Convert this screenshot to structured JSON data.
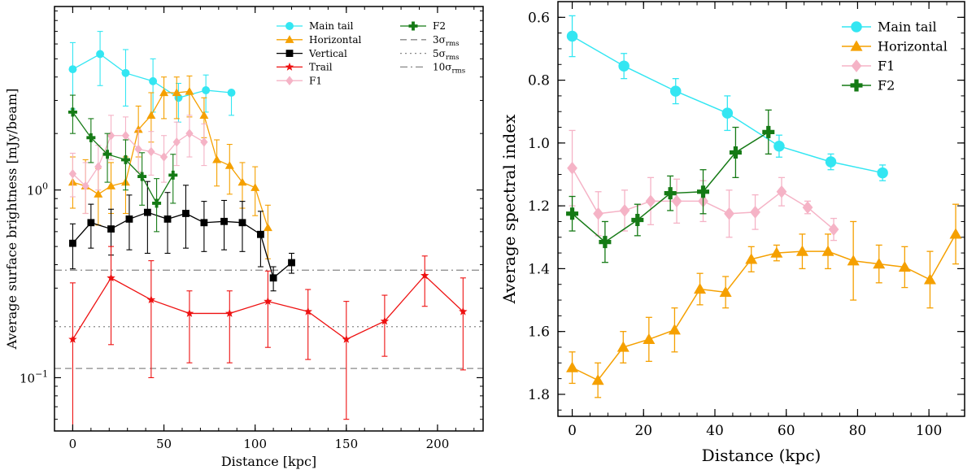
{
  "chart_data": [
    {
      "type": "line",
      "title": "",
      "xlabel": "Distance [kpc]",
      "ylabel": "Average surface brightness [mJy/beam]",
      "yscale": "log",
      "xlim": [
        -10,
        225
      ],
      "ylim": [
        0.052,
        9.5
      ],
      "xticks": [
        0,
        50,
        100,
        150,
        200
      ],
      "xtick_labels": [
        "0",
        "50",
        "100",
        "150",
        "200"
      ],
      "yticks": [
        0.1,
        1
      ],
      "ytick_labels": [
        "10^-1",
        "10^0"
      ],
      "grid": false,
      "legend_location": "top-right",
      "series": [
        {
          "name": "Main tail",
          "color": "#33e6f2",
          "marker": "circle",
          "x": [
            0,
            15,
            29,
            44,
            58,
            73,
            87
          ],
          "y": [
            4.4,
            5.3,
            4.2,
            3.8,
            3.1,
            3.4,
            3.3
          ],
          "yerr_low": [
            1.7,
            1.7,
            1.4,
            1.2,
            0.8,
            0.8,
            0.8
          ],
          "yerr_high": [
            1.7,
            1.7,
            1.4,
            1.2,
            0.6,
            0.7,
            0.0
          ]
        },
        {
          "name": "Horizontal",
          "color": "#f5a000",
          "marker": "triangle",
          "x": [
            0,
            7,
            14,
            21,
            29,
            36,
            43,
            50,
            57,
            64,
            72,
            79,
            86,
            93,
            100,
            107
          ],
          "y": [
            1.1,
            1.05,
            0.95,
            1.05,
            1.1,
            2.1,
            2.5,
            3.3,
            3.3,
            3.35,
            2.5,
            1.45,
            1.35,
            1.1,
            1.03,
            0.63
          ],
          "yerr_low": [
            0.3,
            0.3,
            0.3,
            0.3,
            0.35,
            0.6,
            0.7,
            0.9,
            0.9,
            0.9,
            0.6,
            0.4,
            0.4,
            0.3,
            0.3,
            0.2
          ],
          "yerr_high": [
            0.4,
            0.4,
            0.35,
            0.35,
            0.4,
            0.7,
            0.8,
            0.7,
            0.7,
            0.7,
            0.6,
            0.4,
            0.4,
            0.3,
            0.3,
            0.2
          ]
        },
        {
          "name": "Vertical",
          "color": "#000000",
          "marker": "square",
          "x": [
            0,
            10,
            21,
            31,
            41,
            52,
            62,
            72,
            83,
            93,
            103,
            110,
            120
          ],
          "y": [
            0.52,
            0.67,
            0.62,
            0.7,
            0.76,
            0.7,
            0.75,
            0.67,
            0.68,
            0.67,
            0.58,
            0.34,
            0.41
          ],
          "yerr_low": [
            0.14,
            0.18,
            0.17,
            0.22,
            0.3,
            0.24,
            0.26,
            0.2,
            0.2,
            0.2,
            0.19,
            0.05,
            0.05
          ],
          "yerr_high": [
            0.14,
            0.17,
            0.17,
            0.24,
            0.35,
            0.27,
            0.31,
            0.2,
            0.2,
            0.2,
            0.19,
            0.05,
            0.05
          ]
        },
        {
          "name": "Trail",
          "color": "#ee1111",
          "marker": "star",
          "x": [
            0,
            21,
            43,
            64,
            86,
            107,
            129,
            150,
            171,
            193,
            214
          ],
          "y": [
            0.16,
            0.34,
            0.26,
            0.22,
            0.22,
            0.255,
            0.225,
            0.16,
            0.2,
            0.35,
            0.225
          ],
          "yerr_low": [
            0.11,
            0.19,
            0.16,
            0.1,
            0.1,
            0.11,
            0.1,
            0.1,
            0.07,
            0.11,
            0.115
          ],
          "yerr_high": [
            0.16,
            0.16,
            0.16,
            0.07,
            0.07,
            0.115,
            0.07,
            0.095,
            0.075,
            0.095,
            0.115
          ]
        },
        {
          "name": "F1",
          "color": "#f5b3c6",
          "marker": "diamond",
          "x": [
            0,
            7,
            14,
            21,
            29,
            36,
            43,
            50,
            57,
            64,
            72
          ],
          "y": [
            1.22,
            1.05,
            1.33,
            1.95,
            1.95,
            1.65,
            1.6,
            1.5,
            1.8,
            2.0,
            1.8
          ],
          "yerr_low": [
            0.3,
            0.3,
            0.33,
            0.5,
            0.5,
            0.4,
            0.4,
            0.4,
            0.45,
            0.5,
            0.45
          ],
          "yerr_high": [
            0.35,
            0.35,
            0.4,
            0.55,
            0.5,
            0.45,
            0.45,
            0.45,
            0.5,
            0.5,
            0.45
          ]
        },
        {
          "name": "F2",
          "color": "#157a15",
          "marker": "cross",
          "x": [
            0,
            10,
            19,
            29,
            38,
            46,
            55
          ],
          "y": [
            2.6,
            1.9,
            1.55,
            1.45,
            1.18,
            0.85,
            1.2
          ],
          "yerr_low": [
            0.6,
            0.5,
            0.45,
            0.45,
            0.35,
            0.25,
            0.35
          ],
          "yerr_high": [
            0.6,
            0.5,
            0.45,
            0.4,
            0.4,
            0.3,
            0.35
          ]
        }
      ],
      "hlines": [
        {
          "name": "3σrms",
          "label_base": "3",
          "label_sub": "rms",
          "y": 0.112,
          "style": "dashed",
          "color": "#888888"
        },
        {
          "name": "5σrms",
          "label_base": "5",
          "label_sub": "rms",
          "y": 0.187,
          "style": "dotted",
          "color": "#888888"
        },
        {
          "name": "10σrms",
          "label_base": "10",
          "label_sub": "rms",
          "y": 0.374,
          "style": "dashdot",
          "color": "#888888"
        }
      ]
    },
    {
      "type": "line",
      "title": "",
      "xlabel": "Distance (kpc)",
      "ylabel": "Average spectral index",
      "yscale": "linear",
      "y_inverted": true,
      "xlim": [
        -4,
        110
      ],
      "ylim": [
        1.87,
        0.55
      ],
      "xticks": [
        0,
        20,
        40,
        60,
        80,
        100
      ],
      "xtick_labels": [
        "0",
        "20",
        "40",
        "60",
        "80",
        "100"
      ],
      "yticks": [
        0.6,
        0.8,
        1.0,
        1.2,
        1.4,
        1.6,
        1.8
      ],
      "ytick_labels": [
        "0.6",
        "0.8",
        "1.0",
        "1.2",
        "1.4",
        "1.6",
        "1.8"
      ],
      "grid": false,
      "legend_location": "top-right",
      "series": [
        {
          "name": "Main tail",
          "color": "#33e6f2",
          "marker": "circle",
          "x": [
            0,
            14.5,
            29,
            43.5,
            58,
            72.5,
            87
          ],
          "y": [
            0.66,
            0.755,
            0.835,
            0.905,
            1.01,
            1.06,
            1.095
          ],
          "yerr": [
            0.065,
            0.04,
            0.04,
            0.055,
            0.035,
            0.025,
            0.025
          ]
        },
        {
          "name": "Horizontal",
          "color": "#f5a000",
          "marker": "triangle",
          "x": [
            0,
            7.2,
            14.3,
            21.5,
            28.7,
            35.8,
            43,
            50.2,
            57.3,
            64.5,
            71.7,
            78.8,
            86,
            93.2,
            100.3,
            107.5
          ],
          "y": [
            1.715,
            1.755,
            1.65,
            1.625,
            1.595,
            1.465,
            1.475,
            1.37,
            1.35,
            1.345,
            1.345,
            1.375,
            1.385,
            1.395,
            1.435,
            1.29
          ],
          "yerr": [
            0.05,
            0.055,
            0.05,
            0.07,
            0.07,
            0.05,
            0.05,
            0.04,
            0.025,
            0.055,
            0.055,
            0.125,
            0.06,
            0.065,
            0.09,
            0.095
          ]
        },
        {
          "name": "F1",
          "color": "#f5b3c6",
          "marker": "diamond",
          "x": [
            0,
            7.3,
            14.7,
            22,
            29.3,
            36.7,
            44,
            51.3,
            58.7,
            66,
            73.3
          ],
          "y": [
            1.08,
            1.225,
            1.215,
            1.185,
            1.185,
            1.185,
            1.225,
            1.22,
            1.155,
            1.205,
            1.275
          ],
          "yerr": [
            0.12,
            0.07,
            0.065,
            0.075,
            0.07,
            0.065,
            0.075,
            0.055,
            0.045,
            0.02,
            0.035
          ]
        },
        {
          "name": "F2",
          "color": "#157a15",
          "marker": "cross",
          "x": [
            0,
            9.2,
            18.3,
            27.5,
            36.7,
            45.8,
            55
          ],
          "y": [
            1.225,
            1.315,
            1.245,
            1.16,
            1.155,
            1.03,
            0.965
          ],
          "yerr": [
            0.055,
            0.065,
            0.05,
            0.055,
            0.07,
            0.08,
            0.07
          ]
        }
      ]
    }
  ]
}
